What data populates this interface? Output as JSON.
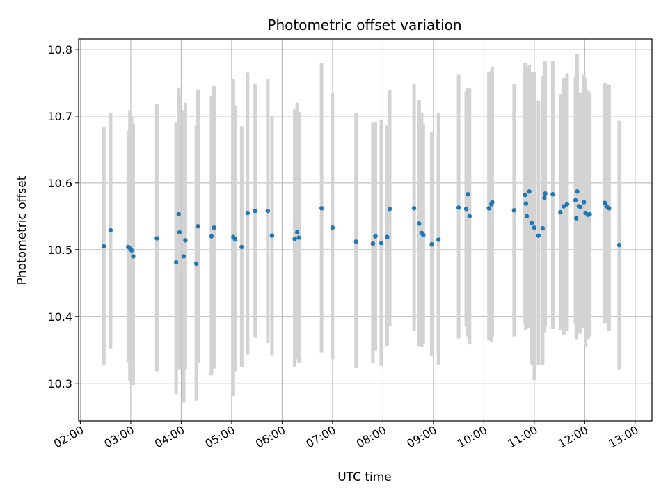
{
  "chart_data": {
    "type": "scatter",
    "title": "Photometric offset variation",
    "xlabel": "UTC time",
    "ylabel": "Photometric offset",
    "grid": true,
    "xlim": [
      "01:58",
      "13:20"
    ],
    "ylim": [
      10.2435,
      10.8155
    ],
    "x_ticks": [
      "02:00",
      "03:00",
      "04:00",
      "05:00",
      "06:00",
      "07:00",
      "08:00",
      "09:00",
      "10:00",
      "11:00",
      "12:00",
      "13:00"
    ],
    "y_ticks": [
      10.3,
      10.4,
      10.5,
      10.6,
      10.7,
      10.8
    ],
    "colors": {
      "point": "#1f77b4",
      "errorbar": "#d3d3d3",
      "grid": "#b0b0b0"
    },
    "series": [
      {
        "x": [
          "02:28",
          "02:36",
          "02:57",
          "02:59",
          "03:01",
          "03:03",
          "03:31",
          "03:54",
          "03:57",
          "03:58",
          "04:03",
          "04:05",
          "04:18",
          "04:20",
          "04:36",
          "04:39",
          "05:02",
          "05:04",
          "05:12",
          "05:19",
          "05:28",
          "05:43",
          "05:48",
          "06:15",
          "06:18",
          "06:20",
          "06:47",
          "07:00",
          "07:28",
          "07:48",
          "07:51",
          "07:58",
          "08:05",
          "08:08",
          "08:37",
          "08:43",
          "08:46",
          "08:48",
          "08:58",
          "09:06",
          "09:30",
          "09:39",
          "09:41",
          "09:43",
          "10:06",
          "10:09",
          "10:10",
          "10:36",
          "10:49",
          "10:50",
          "10:51",
          "10:54",
          "10:57",
          "11:00",
          "11:05",
          "11:10",
          "11:12",
          "11:13",
          "11:22",
          "11:31",
          "11:35",
          "11:39",
          "11:49",
          "11:50",
          "11:51",
          "11:53",
          "11:55",
          "11:59",
          "12:01",
          "12:04",
          "12:06",
          "12:24",
          "12:26",
          "12:29",
          "12:41"
        ],
        "y": [
          10.505,
          10.529,
          10.504,
          10.502,
          10.499,
          10.49,
          10.517,
          10.481,
          10.553,
          10.526,
          10.49,
          10.514,
          10.479,
          10.535,
          10.52,
          10.533,
          10.519,
          10.516,
          10.504,
          10.555,
          10.558,
          10.558,
          10.521,
          10.516,
          10.526,
          10.518,
          10.562,
          10.533,
          10.512,
          10.509,
          10.52,
          10.51,
          10.519,
          10.561,
          10.562,
          10.539,
          10.525,
          10.522,
          10.508,
          10.515,
          10.563,
          10.561,
          10.583,
          10.55,
          10.562,
          10.568,
          10.571,
          10.559,
          10.582,
          10.569,
          10.55,
          10.587,
          10.54,
          10.533,
          10.521,
          10.532,
          10.578,
          10.584,
          10.583,
          10.556,
          10.565,
          10.568,
          10.574,
          10.547,
          10.587,
          10.565,
          10.564,
          10.571,
          10.555,
          10.552,
          10.553,
          10.57,
          10.565,
          10.562,
          10.507
        ],
        "err_low": [
          10.328,
          10.352,
          10.33,
          10.303,
          10.297,
          10.297,
          10.318,
          10.284,
          10.322,
          10.32,
          10.271,
          10.321,
          10.274,
          10.33,
          10.312,
          10.322,
          10.281,
          10.318,
          10.324,
          10.343,
          10.368,
          10.36,
          10.342,
          10.324,
          10.336,
          10.33,
          10.346,
          10.336,
          10.323,
          10.331,
          10.349,
          10.326,
          10.356,
          10.386,
          10.378,
          10.356,
          10.355,
          10.358,
          10.34,
          10.328,
          10.367,
          10.386,
          10.37,
          10.358,
          10.364,
          10.362,
          10.37,
          10.37,
          10.39,
          10.38,
          10.396,
          10.382,
          10.328,
          10.305,
          10.328,
          10.328,
          10.376,
          10.385,
          10.381,
          10.38,
          10.372,
          10.378,
          10.39,
          10.366,
          10.38,
          10.374,
          10.375,
          10.382,
          10.354,
          10.366,
          10.37,
          10.39,
          10.391,
          10.378,
          10.32
        ],
        "err_high": [
          10.683,
          10.705,
          10.678,
          10.709,
          10.7,
          10.688,
          10.718,
          10.691,
          10.743,
          10.731,
          10.709,
          10.72,
          10.686,
          10.74,
          10.73,
          10.745,
          10.756,
          10.716,
          10.685,
          10.765,
          10.748,
          10.756,
          10.7,
          10.71,
          10.72,
          10.706,
          10.78,
          10.734,
          10.705,
          10.69,
          10.691,
          10.694,
          10.686,
          10.739,
          10.749,
          10.724,
          10.704,
          10.688,
          10.676,
          10.704,
          10.762,
          10.737,
          10.742,
          10.741,
          10.766,
          10.768,
          10.773,
          10.749,
          10.78,
          10.762,
          10.706,
          10.776,
          10.765,
          10.766,
          10.723,
          10.76,
          10.783,
          10.782,
          10.783,
          10.733,
          10.757,
          10.764,
          10.759,
          10.728,
          10.793,
          10.736,
          10.735,
          10.762,
          10.757,
          10.738,
          10.736,
          10.75,
          10.741,
          10.747,
          10.693
        ]
      }
    ]
  }
}
